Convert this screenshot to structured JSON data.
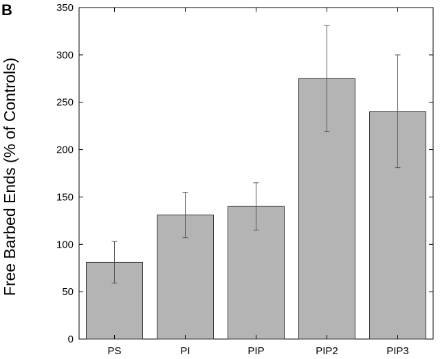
{
  "panel_label": "B",
  "chart_data": {
    "type": "bar",
    "title": "",
    "xlabel": "",
    "ylabel": "Free Barbed Ends (% of Controls)",
    "categories": [
      "PS",
      "PI",
      "PIP",
      "PIP2",
      "PIP3"
    ],
    "values": [
      81,
      131,
      140,
      275,
      240
    ],
    "error_bars": [
      {
        "low": 59,
        "high": 103
      },
      {
        "low": 107,
        "high": 155
      },
      {
        "low": 115,
        "high": 165
      },
      {
        "low": 219,
        "high": 331
      },
      {
        "low": 181,
        "high": 300
      }
    ],
    "ylim": [
      0,
      350
    ],
    "yticks": [
      0,
      50,
      100,
      150,
      200,
      250,
      300,
      350
    ],
    "grid": false,
    "legend": "none",
    "colors": {
      "bar_fill": "#b4b4b4",
      "bar_stroke": "#333333",
      "error_bar": "#555555"
    }
  }
}
